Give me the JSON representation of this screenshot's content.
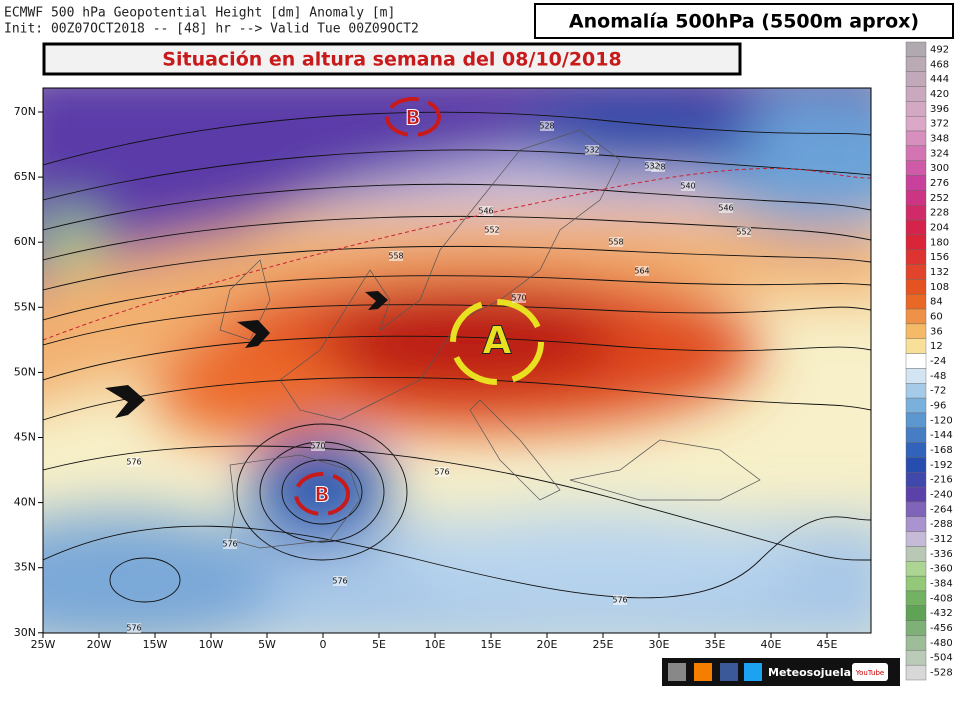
{
  "header": {
    "line1": "ECMWF 500 hPa Geopotential Height [dm] Anomaly [m]",
    "line2": "Init: 00Z07OCT2018 -- [48] hr --> Valid Tue 00Z09OCT2"
  },
  "title_right": "Anomalía 500hPa (5500m aprox)",
  "title_main": "Situación en altura semana del 08/10/2018",
  "map": {
    "lat_labels": [
      "70N",
      "65N",
      "60N",
      "55N",
      "50N",
      "45N",
      "40N",
      "35N",
      "30N"
    ],
    "lon_labels": [
      "25W",
      "20W",
      "15W",
      "10W",
      "5W",
      "0",
      "5E",
      "10E",
      "15E",
      "20E",
      "25E",
      "30E",
      "35E",
      "40E",
      "45E"
    ],
    "contour_labels": [
      "528",
      "532",
      "528",
      "532",
      "540",
      "546",
      "552",
      "546",
      "552",
      "558",
      "558",
      "564",
      "570",
      "570",
      "576",
      "576",
      "576",
      "576",
      "576",
      "576"
    ],
    "symbols": [
      "B",
      "A",
      "B"
    ]
  },
  "colorbar": [
    492,
    468,
    444,
    420,
    396,
    372,
    348,
    324,
    300,
    276,
    252,
    228,
    204,
    180,
    156,
    132,
    108,
    84,
    60,
    36,
    12,
    -24,
    -48,
    -72,
    -96,
    -120,
    -144,
    -168,
    -192,
    -216,
    -240,
    -264,
    -288,
    -312,
    -336,
    -360,
    -384,
    -408,
    -432,
    -456,
    -480,
    -504,
    -528
  ],
  "footer": {
    "brand": "Meteosojuela",
    "video": "YouTube"
  }
}
